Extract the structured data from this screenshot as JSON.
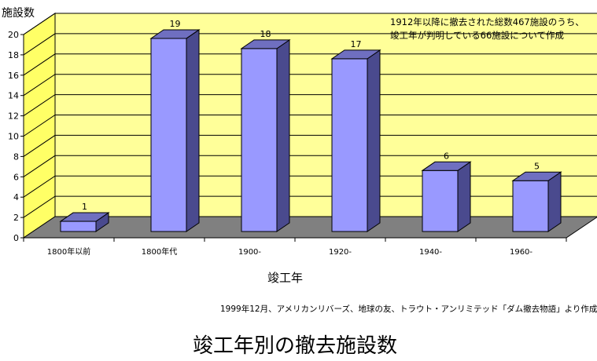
{
  "chart_data": {
    "type": "bar",
    "title": "竣工年別の撤去施設数",
    "ylabel": "施設数",
    "xlabel": "竣工年",
    "categories": [
      "1800年以前",
      "1800年代",
      "1900-",
      "1920-",
      "1940-",
      "1960-"
    ],
    "values": [
      1,
      19,
      18,
      17,
      6,
      5
    ],
    "ylim": [
      0,
      20
    ],
    "yticks": [
      "0",
      "2",
      "4",
      "6",
      "8",
      "10",
      "12",
      "14",
      "16",
      "18",
      "20"
    ],
    "grid": true,
    "colors": {
      "bar_front": "#9999ff",
      "bar_side": "#4a4a8e",
      "bar_top": "#6f6fc0",
      "back_wall": "#ffff99",
      "side_wall": "#ffff66",
      "floor": "#808080"
    }
  },
  "annotation": {
    "line1": "1912年以降に撤去された総数467施設のうち、",
    "line2": "竣工年が判明している66施設について作成"
  },
  "source": "1999年12月、アメリカンリバーズ、地球の友、トラウト・アンリミテッド「ダム撤去物語」より作成"
}
